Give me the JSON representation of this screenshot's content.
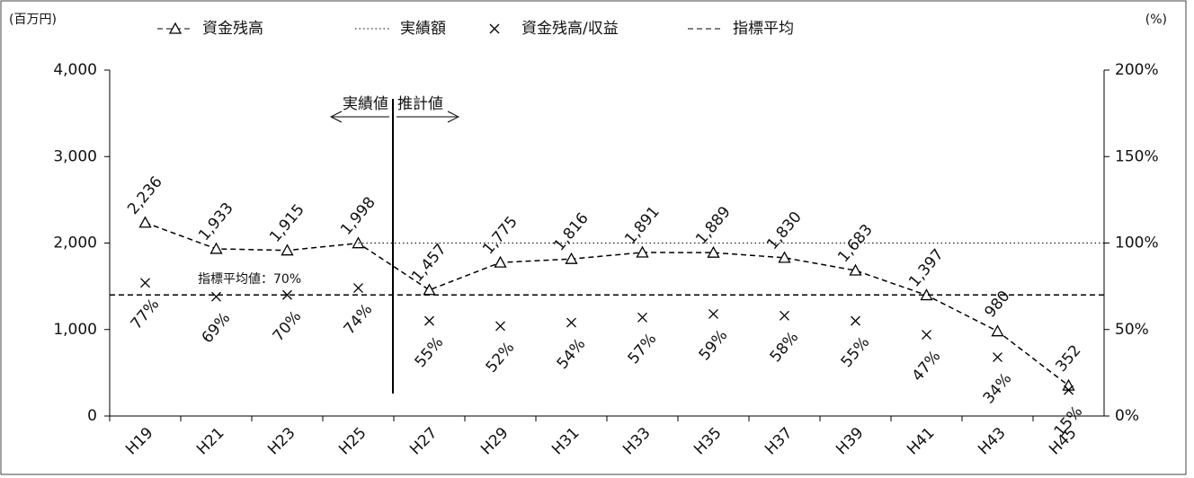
{
  "chart_data": {
    "type": "line",
    "y_unit": "(百万円)",
    "y2_unit": "(%)",
    "annotations": {
      "average": "指標平均値：70%",
      "actual": "実績値",
      "estimate": "推計値"
    },
    "categories": [
      "H19",
      "H21",
      "H23",
      "H25",
      "H27",
      "H29",
      "H31",
      "H33",
      "H35",
      "H37",
      "H39",
      "H41",
      "H43",
      "H45"
    ],
    "series": [
      {
        "name": "資金残高",
        "color": "#000000",
        "line": "dashed",
        "marker": "triangle",
        "axis": "y",
        "values": [
          2236,
          1933,
          1915,
          1998,
          1457,
          1775,
          1816,
          1891,
          1889,
          1830,
          1683,
          1397,
          980,
          352
        ],
        "value_labels": [
          "2,236",
          "1,933",
          "1,915",
          "1,998",
          "1,457",
          "1,775",
          "1,816",
          "1,891",
          "1,889",
          "1,830",
          "1,683",
          "1,397",
          "980",
          "352"
        ]
      },
      {
        "name": "実績額",
        "color": "#000000",
        "line": "dotted",
        "marker": "none",
        "axis": "y",
        "values": [
          null,
          null,
          null,
          2000,
          2000,
          2000,
          2000,
          2000,
          2000,
          2000,
          2000,
          2000,
          2000,
          2000
        ]
      },
      {
        "name": "資金残高/収益",
        "color": "#000000",
        "line": "none",
        "marker": "x",
        "axis": "y2",
        "values": [
          77,
          69,
          70,
          74,
          55,
          52,
          54,
          57,
          59,
          58,
          55,
          47,
          34,
          15
        ],
        "value_labels": [
          "77%",
          "69%",
          "70%",
          "74%",
          "55%",
          "52%",
          "54%",
          "57%",
          "59%",
          "58%",
          "55%",
          "47%",
          "34%",
          "15%"
        ]
      },
      {
        "name": "指標平均",
        "color": "#000000",
        "line": "dashed",
        "marker": "none",
        "axis": "y2",
        "values": [
          70,
          70,
          70,
          70,
          70,
          70,
          70,
          70,
          70,
          70,
          70,
          70,
          70,
          70
        ]
      }
    ],
    "ylim": [
      0,
      4000
    ],
    "yticks": [
      0,
      {
        "value": 1000,
        "label": "1,000"
      },
      {
        "value": 2000,
        "label": "2,000"
      },
      {
        "value": 3000,
        "label": "3,000"
      },
      {
        "value": 4000,
        "label": "4,000"
      }
    ],
    "y2lim": [
      0,
      200
    ],
    "y2ticks": [
      {
        "value": 0,
        "label": "0%"
      },
      {
        "value": 50,
        "label": "50%"
      },
      {
        "value": 100,
        "label": "100%"
      },
      {
        "value": 150,
        "label": "150%"
      },
      {
        "value": 200,
        "label": "200%"
      }
    ],
    "grid": false
  }
}
